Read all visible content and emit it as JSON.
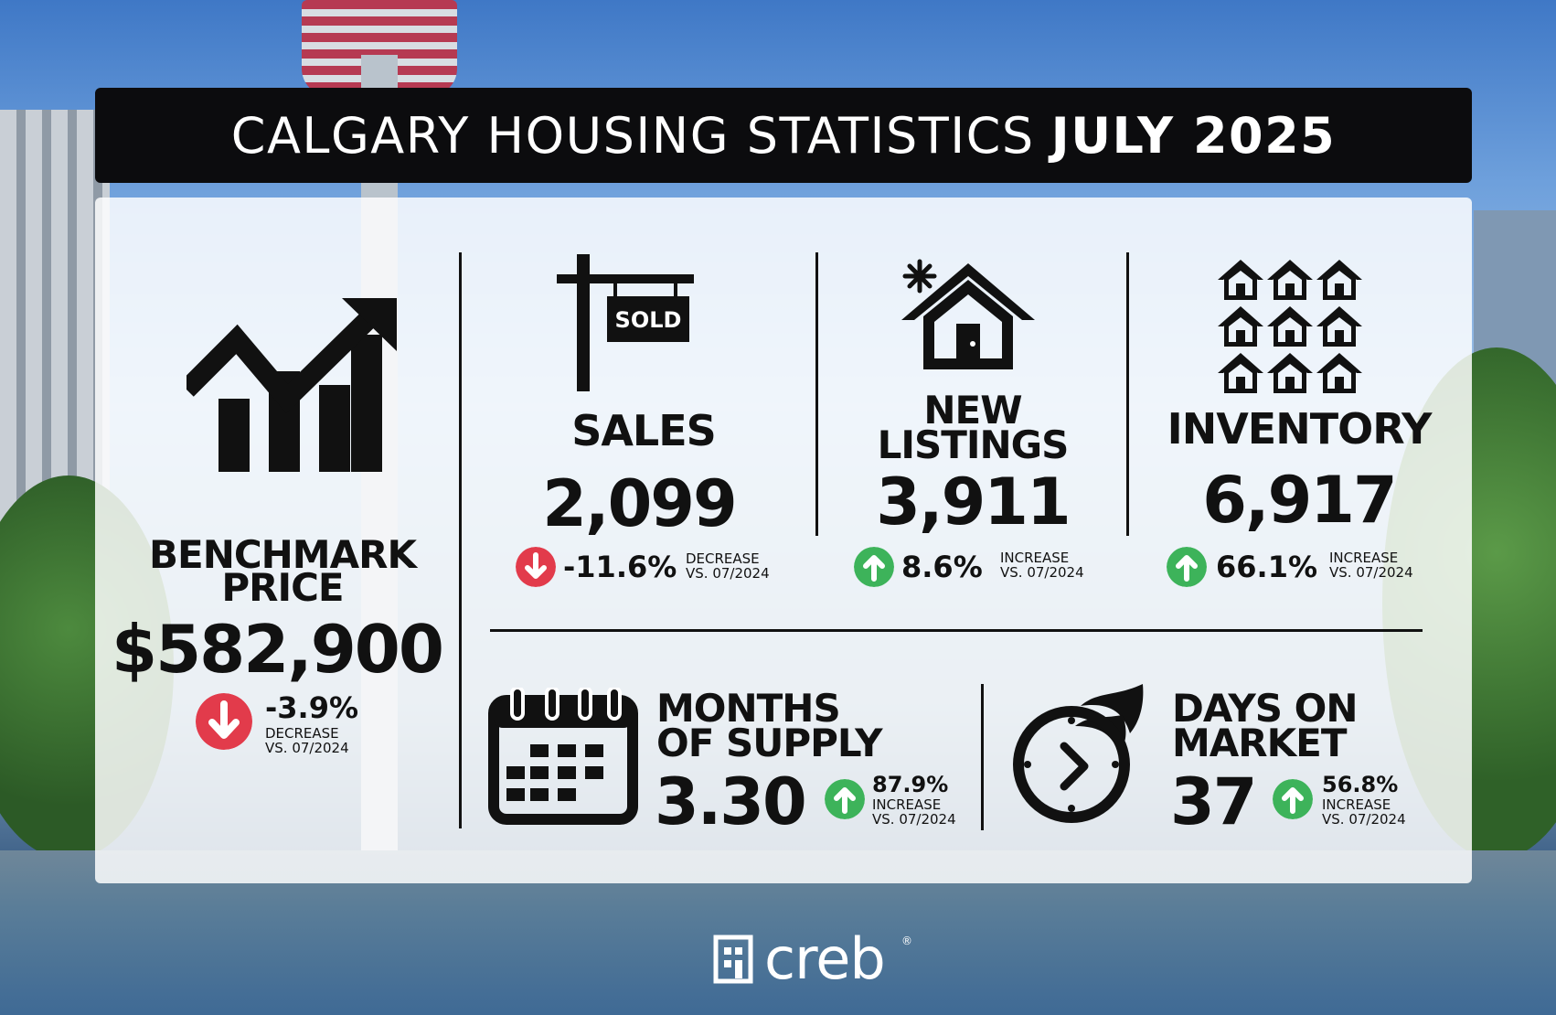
{
  "header": {
    "title_light": "CALGARY HOUSING STATISTICS",
    "title_bold": "JULY 2025"
  },
  "benchmark": {
    "label_line1": "BENCHMARK",
    "label_line2": "PRICE",
    "value": "$582,900",
    "change": "-3.9%",
    "direction_line1": "DECREASE",
    "direction_line2": "VS. 07/2024",
    "icon": "bar-chart-trending-up-icon"
  },
  "sales": {
    "label": "SALES",
    "sign_text": "SOLD",
    "value": "2,099",
    "change": "-11.6%",
    "direction_line1": "DECREASE",
    "direction_line2": "VS. 07/2024",
    "icon": "sold-sign-icon"
  },
  "new_listings": {
    "label_line1": "NEW",
    "label_line2": "LISTINGS",
    "value": "3,911",
    "change": "8.6%",
    "direction_line1": "INCREASE",
    "direction_line2": "VS. 07/2024",
    "icon": "new-house-icon"
  },
  "inventory": {
    "label": "INVENTORY",
    "value": "6,917",
    "change": "66.1%",
    "direction_line1": "INCREASE",
    "direction_line2": "VS. 07/2024",
    "icon": "houses-grid-icon"
  },
  "months_of_supply": {
    "label_line1": "MONTHS",
    "label_line2": "OF SUPPLY",
    "value": "3.30",
    "change": "87.9%",
    "direction_line1": "INCREASE",
    "direction_line2": "VS. 07/2024",
    "icon": "calendar-icon"
  },
  "days_on_market": {
    "label_line1": "DAYS ON",
    "label_line2": "MARKET",
    "value": "37",
    "change": "56.8%",
    "direction_line1": "INCREASE",
    "direction_line2": "VS. 07/2024",
    "icon": "fast-clock-icon"
  },
  "footer": {
    "logo_text": "creb",
    "registered": "®"
  },
  "colors": {
    "increase": "#3db35a",
    "decrease": "#e23b4b",
    "title_bar": "#0c0c0e"
  }
}
